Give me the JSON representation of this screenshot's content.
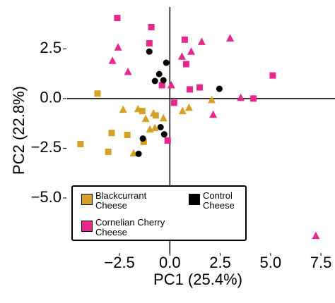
{
  "chart_data": {
    "type": "scatter",
    "x_label": "PC1 (25.4%)",
    "y_label": "PC2 (22.8%)",
    "xlim": [
      -5.1,
      8.2
    ],
    "ylim": [
      -7.8,
      4.6
    ],
    "xticks": [
      {
        "value": -2.5,
        "label": "−2.5"
      },
      {
        "value": 0,
        "label": "0.0"
      },
      2.5,
      {
        "value": 5,
        "label": "5.0"
      },
      7.5
    ],
    "yticks": [
      2.5,
      {
        "value": 0,
        "label": "0.0"
      },
      {
        "value": -2.5,
        "label": "−2.5"
      },
      {
        "value": -5,
        "label": "−5.0"
      }
    ],
    "series": [
      {
        "name": "Blackcurrant Cheese",
        "color": "#d4a226",
        "x": [
          -3.59,
          -4.44,
          -2.89,
          -3.06,
          -2.11,
          -1.3,
          -1.37,
          -0.7,
          -2.32,
          -1.58,
          -0.81,
          -1.2,
          -0.74,
          -0.32,
          0.63,
          0.95,
          2.08,
          -0.99,
          -1.8
        ],
        "values": [
          0.25,
          -2.29,
          -1.73,
          -2.68,
          -1.83,
          -2.18,
          -0.63,
          -0.85,
          -0.56,
          -0.53,
          -0.74,
          -1.02,
          -1.48,
          -0.99,
          -0.63,
          -0.46,
          -0.07,
          -1.55,
          -2.75
        ],
        "markers": [
          "square",
          "square",
          "square",
          "square",
          "square",
          "square",
          "square",
          "square",
          "triangle",
          "triangle",
          "triangle",
          "triangle",
          "triangle",
          "triangle",
          "triangle",
          "triangle",
          "triangle",
          "triangle",
          "triangle"
        ]
      },
      {
        "name": "Cornelian Cherry Cheese",
        "color": "#e8278c",
        "x": [
          -2.61,
          -0.92,
          -1.02,
          0.74,
          -0.39,
          0.81,
          0.99,
          0.21,
          -0.11,
          5.11,
          4.15,
          1.48,
          -2.85,
          -2.08,
          -2.57,
          0.6,
          1.06,
          1.58,
          2.99,
          0.07,
          3.52,
          2.15,
          7.25
        ],
        "values": [
          4.05,
          3.59,
          2.78,
          2.96,
          0.67,
          1.73,
          0.46,
          -0.21,
          -2.11,
          1.16,
          0.0,
          0.56,
          1.9,
          1.34,
          2.57,
          2.11,
          2.36,
          2.85,
          3.03,
          0.67,
          0.04,
          -0.81,
          -6.9
        ],
        "markers": [
          "square",
          "square",
          "square",
          "square",
          "square",
          "square",
          "square",
          "square",
          "square",
          "square",
          "square",
          "square",
          "triangle",
          "triangle",
          "triangle",
          "triangle",
          "triangle",
          "triangle",
          "triangle",
          "triangle",
          "triangle",
          "triangle",
          "triangle"
        ]
      },
      {
        "name": "Control Cheese",
        "color": "#000000",
        "x": [
          -1.02,
          -0.18,
          -0.53,
          -0.74,
          -0.32,
          2.46,
          -0.46,
          -0.28,
          -1.55,
          -1.34
        ],
        "values": [
          2.36,
          1.8,
          1.23,
          0.88,
          0.92,
          0.49,
          -1.44,
          -1.8,
          -2.78,
          -2.01
        ],
        "markers": [
          "circle",
          "circle",
          "circle",
          "circle",
          "circle",
          "circle",
          "circle",
          "circle",
          "circle",
          "circle"
        ]
      }
    ]
  }
}
